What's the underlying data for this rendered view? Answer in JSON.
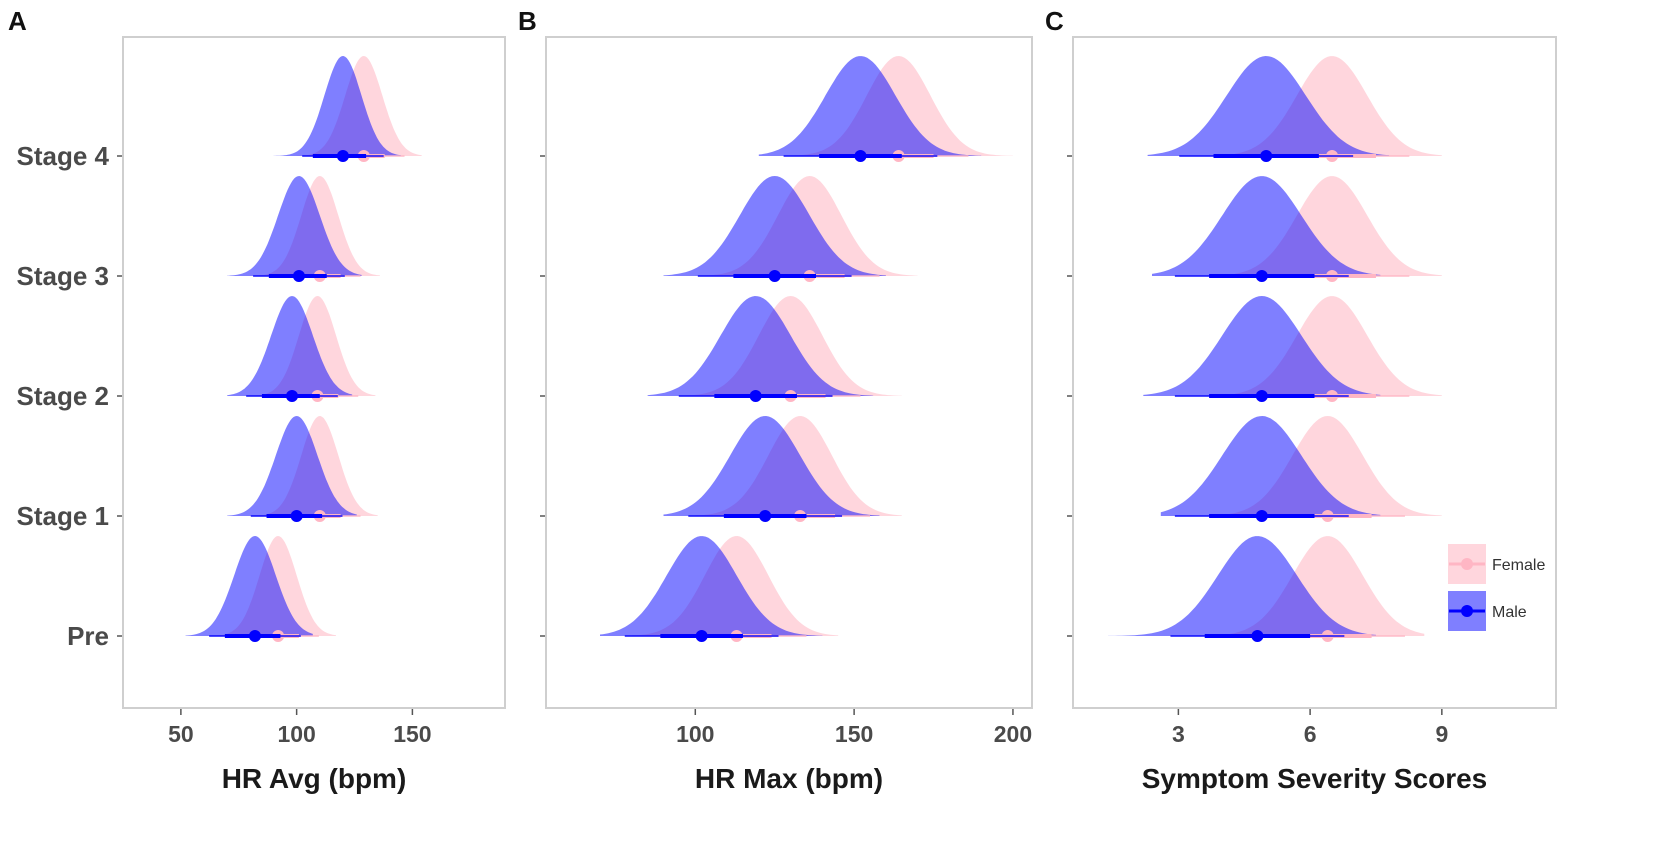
{
  "chart_data": [
    {
      "panel": "A",
      "type": "density-ridges",
      "xlabel": "HR Avg (bpm)",
      "xlim": [
        25,
        190
      ],
      "xticks": [
        50,
        100,
        150
      ],
      "categories": [
        "Pre",
        "Stage 1",
        "Stage 2",
        "Stage 3",
        "Stage 4"
      ],
      "series": [
        {
          "name": "Female",
          "color": "#ffc0cb",
          "mean": [
            92,
            110,
            109,
            110,
            129
          ],
          "sd": [
            8,
            8,
            8,
            8,
            8
          ],
          "ci": [
            [
              83,
              101
            ],
            [
              101,
              119
            ],
            [
              100,
              118
            ],
            [
              101,
              119
            ],
            [
              120,
              138
            ]
          ],
          "range": [
            [
              60,
              117
            ],
            [
              80,
              135
            ],
            [
              75,
              134
            ],
            [
              80,
              136
            ],
            [
              100,
              154
            ]
          ]
        },
        {
          "name": "Male",
          "color": "#0000ff",
          "mean": [
            82,
            100,
            98,
            101,
            120
          ],
          "sd": [
            9,
            9,
            9,
            9,
            8
          ],
          "ci": [
            [
              69,
              93
            ],
            [
              87,
              111
            ],
            [
              85,
              110
            ],
            [
              88,
              113
            ],
            [
              107,
              130
            ]
          ],
          "range": [
            [
              52,
              107
            ],
            [
              70,
              126
            ],
            [
              70,
              124
            ],
            [
              70,
              128
            ],
            [
              90,
              145
            ]
          ]
        }
      ]
    },
    {
      "panel": "B",
      "type": "density-ridges",
      "xlabel": "HR Max (bpm)",
      "xlim": [
        53,
        206
      ],
      "xticks": [
        100,
        150,
        200
      ],
      "categories": [
        "Pre",
        "Stage 1",
        "Stage 2",
        "Stage 3",
        "Stage 4"
      ],
      "series": [
        {
          "name": "Female",
          "color": "#ffc0cb",
          "mean": [
            113,
            133,
            130,
            136,
            164
          ],
          "sd": [
            10,
            10,
            10,
            10,
            10
          ],
          "ci": [
            [
              102,
              124
            ],
            [
              122,
              144
            ],
            [
              119,
              141
            ],
            [
              125,
              147
            ],
            [
              153,
              175
            ]
          ],
          "range": [
            [
              80,
              145
            ],
            [
              100,
              165
            ],
            [
              95,
              165
            ],
            [
              100,
              170
            ],
            [
              130,
              200
            ]
          ]
        },
        {
          "name": "Male",
          "color": "#0000ff",
          "mean": [
            102,
            122,
            119,
            125,
            152
          ],
          "sd": [
            11,
            11,
            11,
            11,
            11
          ],
          "ci": [
            [
              89,
              115
            ],
            [
              109,
              135
            ],
            [
              106,
              132
            ],
            [
              112,
              138
            ],
            [
              139,
              165
            ]
          ],
          "range": [
            [
              70,
              140
            ],
            [
              90,
              158
            ],
            [
              85,
              156
            ],
            [
              90,
              160
            ],
            [
              120,
              190
            ]
          ]
        }
      ]
    },
    {
      "panel": "C",
      "type": "density-ridges",
      "xlabel": "Symptom Severity Scores",
      "xlim": [
        0.6,
        11.6
      ],
      "xticks": [
        3,
        6,
        9
      ],
      "categories": [
        "Pre",
        "Stage 1",
        "Stage 2",
        "Stage 3",
        "Stage 4"
      ],
      "series": [
        {
          "name": "Female",
          "color": "#ffc0cb",
          "mean": [
            6.4,
            6.4,
            6.5,
            6.5,
            6.5
          ],
          "sd": [
            0.8,
            0.8,
            0.8,
            0.8,
            0.8
          ],
          "ci": [
            [
              5.4,
              7.4
            ],
            [
              5.4,
              7.4
            ],
            [
              5.5,
              7.5
            ],
            [
              5.5,
              7.5
            ],
            [
              5.5,
              7.5
            ]
          ],
          "range": [
            [
              3.5,
              8.6
            ],
            [
              3.8,
              9.0
            ],
            [
              3.8,
              9.0
            ],
            [
              3.8,
              9.0
            ],
            [
              3.8,
              9.0
            ]
          ]
        },
        {
          "name": "Male",
          "color": "#0000ff",
          "mean": [
            4.8,
            4.9,
            4.9,
            4.9,
            5.0
          ],
          "sd": [
            0.9,
            0.9,
            0.9,
            0.9,
            0.9
          ],
          "ci": [
            [
              3.6,
              6.0
            ],
            [
              3.7,
              6.1
            ],
            [
              3.7,
              6.1
            ],
            [
              3.7,
              6.1
            ],
            [
              3.8,
              6.2
            ]
          ],
          "range": [
            [
              1.4,
              7.5
            ],
            [
              2.6,
              7.6
            ],
            [
              2.2,
              7.6
            ],
            [
              2.4,
              7.6
            ],
            [
              2.3,
              7.8
            ]
          ]
        }
      ]
    }
  ],
  "panel_labels": [
    "A",
    "B",
    "C"
  ],
  "legend": {
    "items": [
      {
        "label": "Female",
        "color": "#ffc0cb"
      },
      {
        "label": "Male",
        "color": "#0000ff"
      }
    ]
  }
}
